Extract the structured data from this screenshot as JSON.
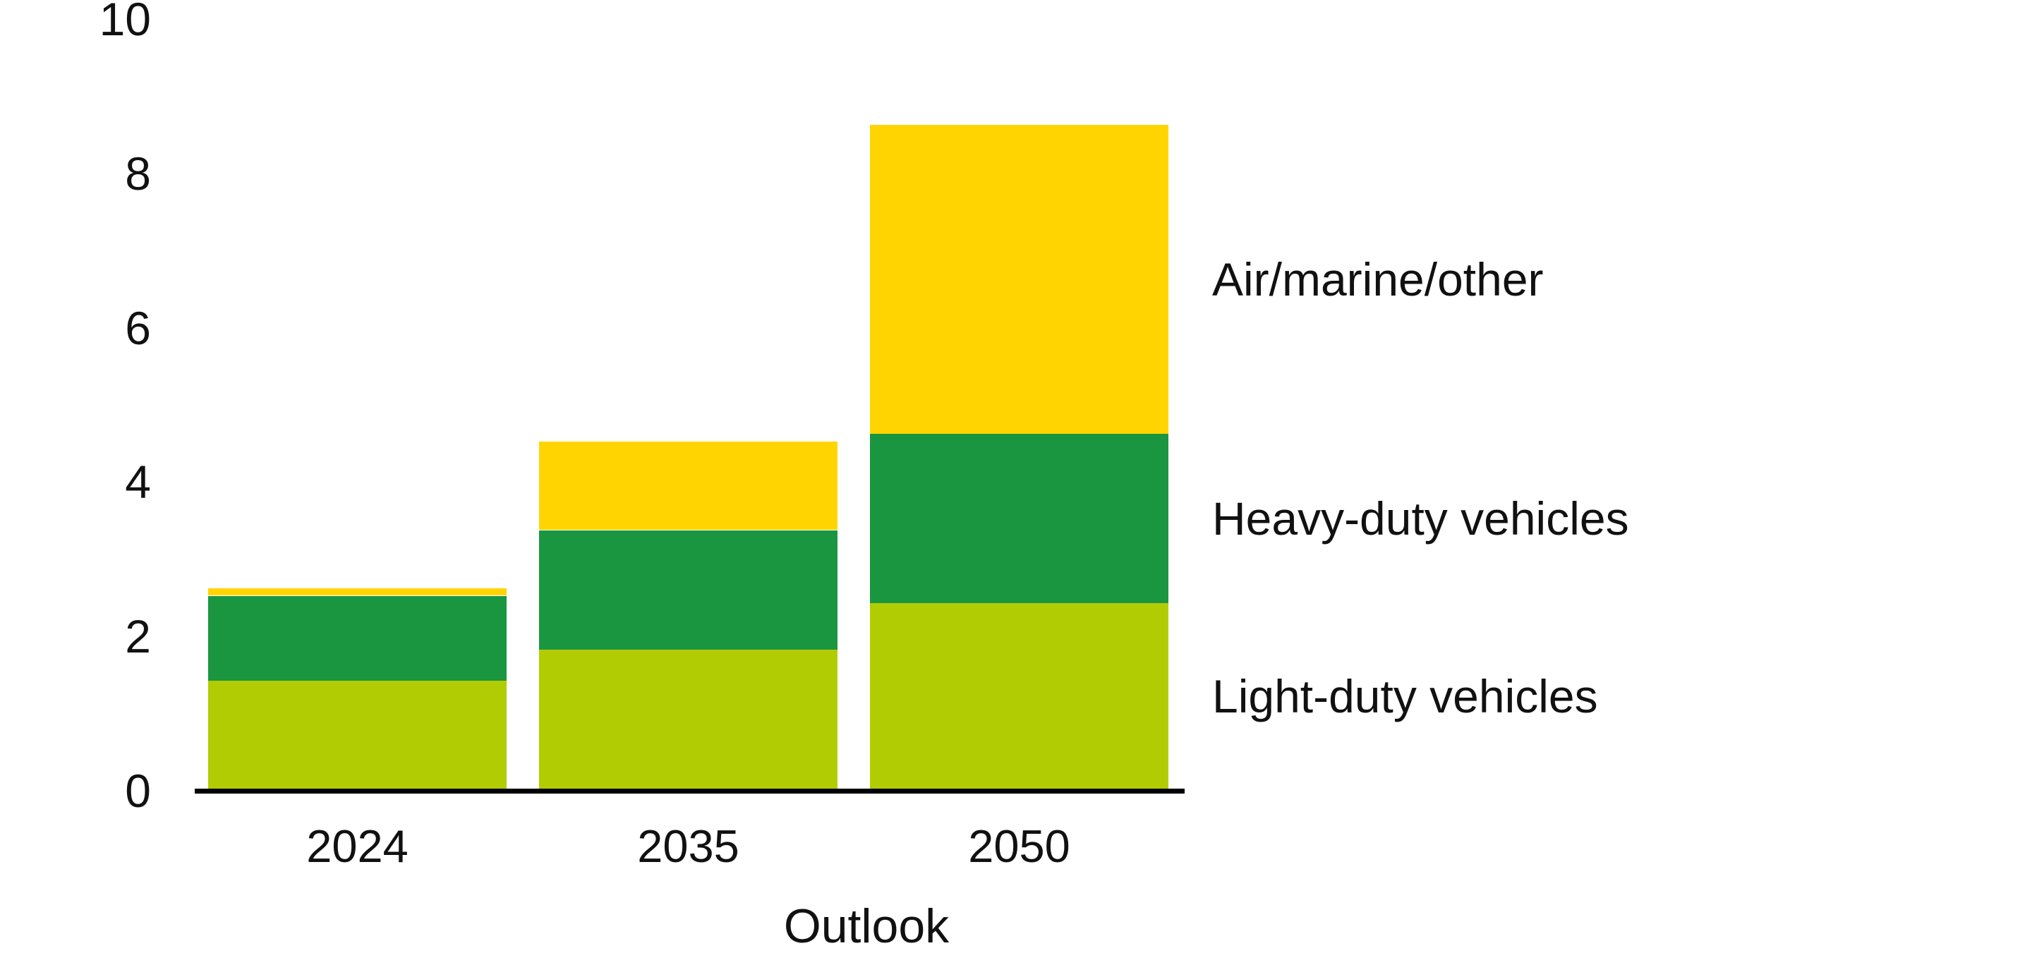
{
  "chart_data": {
    "type": "bar",
    "stacked": true,
    "title": "",
    "xlabel": "Outlook",
    "ylabel": "",
    "categories": [
      "2024",
      "2035",
      "2050"
    ],
    "series": [
      {
        "name": "Light-duty vehicles",
        "color": "#b2cc04",
        "values": [
          1.4,
          1.8,
          2.4
        ]
      },
      {
        "name": "Heavy-duty vehicles",
        "color": "#1a9641",
        "values": [
          1.1,
          1.55,
          2.2
        ]
      },
      {
        "name": "Air/marine/other",
        "color": "#ffd400",
        "values": [
          0.1,
          1.15,
          4.0
        ]
      }
    ],
    "totals": [
      2.6,
      4.5,
      8.6
    ],
    "ylim": [
      0,
      10
    ],
    "yticks": [
      0,
      2,
      4,
      6,
      8,
      10
    ],
    "grid": false,
    "legend_position": "right of plot, each label vertically centered on the matching 2050 bar segment",
    "background": "#ffffff",
    "axis_line_color": "#000000",
    "text_color": "#111111"
  }
}
